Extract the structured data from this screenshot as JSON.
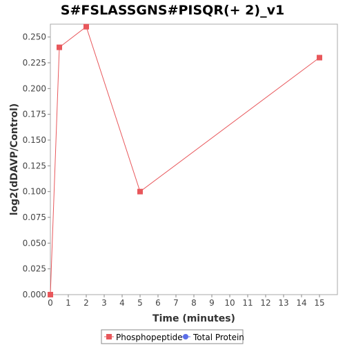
{
  "chart_data": {
    "type": "line",
    "title": "S#FSLASSGNS#PISQR(+ 2)_v1",
    "xlabel": "Time (minutes)",
    "ylabel": "log2(dDAVP/Control)",
    "xlim": [
      0,
      16
    ],
    "ylim": [
      0,
      0.2625
    ],
    "x_ticks": [
      0,
      1,
      2,
      3,
      4,
      5,
      6,
      7,
      8,
      9,
      10,
      11,
      12,
      13,
      14,
      15
    ],
    "y_ticks": [
      0.0,
      0.025,
      0.05,
      0.075,
      0.1,
      0.125,
      0.15,
      0.175,
      0.2,
      0.225,
      0.25
    ],
    "y_tick_labels": [
      "0.000",
      "0.025",
      "0.050",
      "0.075",
      "0.100",
      "0.125",
      "0.150",
      "0.175",
      "0.200",
      "0.225",
      "0.250"
    ],
    "grid": false,
    "legend_position": "bottom",
    "series": [
      {
        "name": "Phosphopeptide",
        "color": "#e8575b",
        "marker": "square",
        "x": [
          0,
          0.5,
          2,
          5,
          15
        ],
        "y": [
          0.0,
          0.24,
          0.26,
          0.1,
          0.23
        ]
      },
      {
        "name": "Total Protein",
        "color": "#5b6ee8",
        "marker": "circle",
        "x": [],
        "y": []
      }
    ]
  }
}
